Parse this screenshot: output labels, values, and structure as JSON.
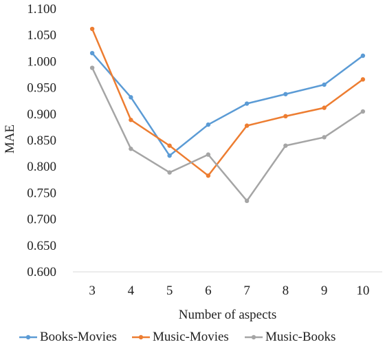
{
  "chart_data": {
    "type": "line",
    "title": "",
    "xlabel": "Number of aspects",
    "ylabel": "MAE",
    "categories": [
      "3",
      "4",
      "5",
      "6",
      "7",
      "8",
      "9",
      "10"
    ],
    "ylim": [
      0.6,
      1.1
    ],
    "yticks": [
      "0.600",
      "0.650",
      "0.700",
      "0.750",
      "0.800",
      "0.850",
      "0.900",
      "0.950",
      "1.000",
      "1.050",
      "1.100"
    ],
    "grid": false,
    "legend_position": "bottom",
    "series": [
      {
        "name": "Books-Movies",
        "color": "#5b9bd5",
        "values": [
          1.016,
          0.932,
          0.821,
          0.88,
          0.92,
          0.938,
          0.956,
          1.011
        ]
      },
      {
        "name": "Music-Movies",
        "color": "#ed7d31",
        "values": [
          1.062,
          0.889,
          0.84,
          0.783,
          0.878,
          0.896,
          0.912,
          0.966
        ]
      },
      {
        "name": "Music-Books",
        "color": "#a5a5a5",
        "values": [
          0.988,
          0.834,
          0.789,
          0.823,
          0.735,
          0.84,
          0.856,
          0.905
        ]
      }
    ]
  }
}
